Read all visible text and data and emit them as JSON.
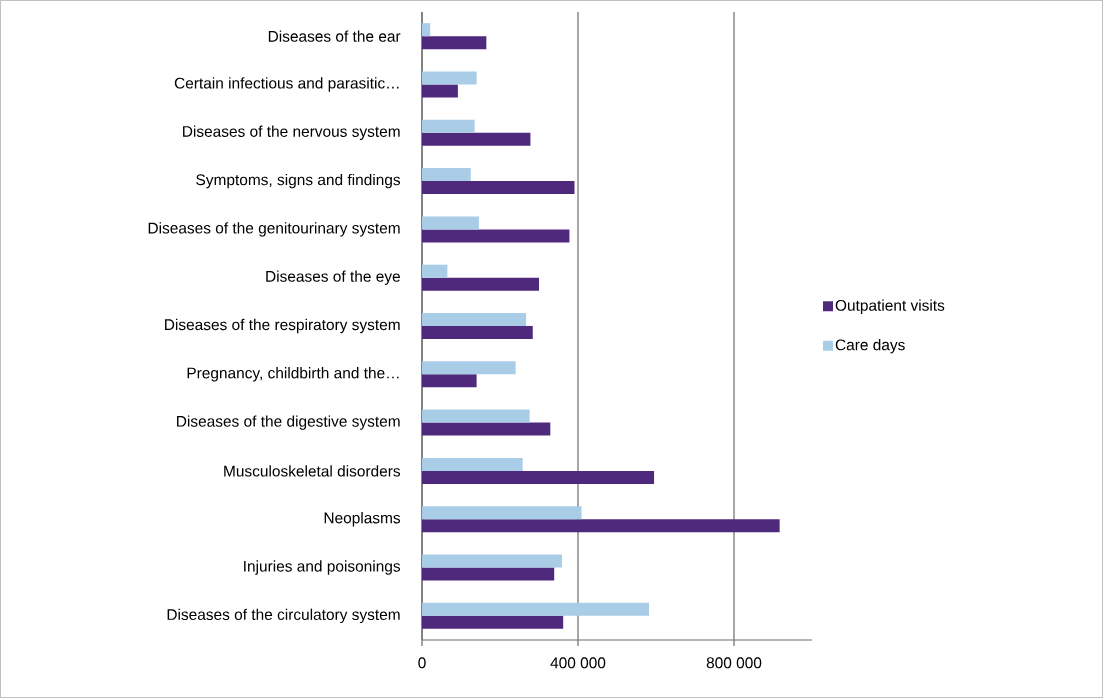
{
  "chart_data": {
    "type": "bar",
    "orientation": "horizontal",
    "categories": [
      "Diseases of the ear",
      "Certain infectious and parasitic…",
      "Diseases of the nervous system",
      "Symptoms, signs and findings",
      "Diseases of the genitourinary system",
      "Diseases of the eye",
      "Diseases of the respiratory system",
      "Pregnancy, childbirth and the…",
      "Diseases of the digestive system",
      "Musculoskeletal disorders",
      "Neoplasms",
      "Injuries and poisonings",
      "Diseases of the circulatory system"
    ],
    "series": [
      {
        "name": "Outpatient visits",
        "color": "#4f2a7c",
        "values": [
          165000,
          92000,
          278000,
          391000,
          378000,
          300000,
          284000,
          140000,
          329000,
          595000,
          917000,
          339000,
          362000
        ]
      },
      {
        "name": "Care days",
        "color": "#a9cde6",
        "values": [
          21000,
          140000,
          135000,
          125000,
          146000,
          65000,
          267000,
          240000,
          276000,
          258000,
          409000,
          359000,
          582000
        ]
      }
    ],
    "xlim": [
      0,
      1000000
    ],
    "xticks": [
      0,
      {
        "value": 400000,
        "label": "400 000"
      },
      {
        "value": 800000,
        "label": "800 000"
      }
    ],
    "grid": "x",
    "legend": "right"
  }
}
